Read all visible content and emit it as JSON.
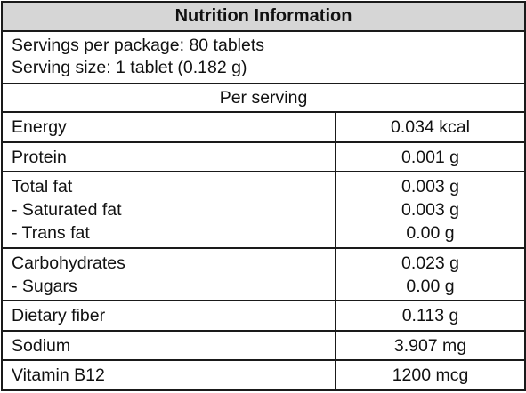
{
  "title": "Nutrition Information",
  "servings": {
    "per_package": "Servings per package: 80 tablets",
    "serving_size": "Serving size: 1 tablet (0.182 g)"
  },
  "per_serving_label": "Per serving",
  "rows": [
    {
      "lines": [
        "Energy"
      ],
      "values": [
        "0.034 kcal"
      ]
    },
    {
      "lines": [
        "Protein"
      ],
      "values": [
        "0.001 g"
      ]
    },
    {
      "lines": [
        "Total fat",
        "- Saturated fat",
        "- Trans fat"
      ],
      "values": [
        "0.003 g",
        "0.003 g",
        "0.00 g"
      ]
    },
    {
      "lines": [
        "Carbohydrates",
        "- Sugars"
      ],
      "values": [
        "0.023 g",
        "0.00 g"
      ]
    },
    {
      "lines": [
        "Dietary fiber"
      ],
      "values": [
        "0.113 g"
      ]
    },
    {
      "lines": [
        "Sodium"
      ],
      "values": [
        "3.907 mg"
      ]
    },
    {
      "lines": [
        "Vitamin B12"
      ],
      "values": [
        "1200 mcg"
      ]
    }
  ],
  "colors": {
    "header_bg": "#d6d6d6",
    "border": "#1a1a1a",
    "text": "#111111"
  }
}
